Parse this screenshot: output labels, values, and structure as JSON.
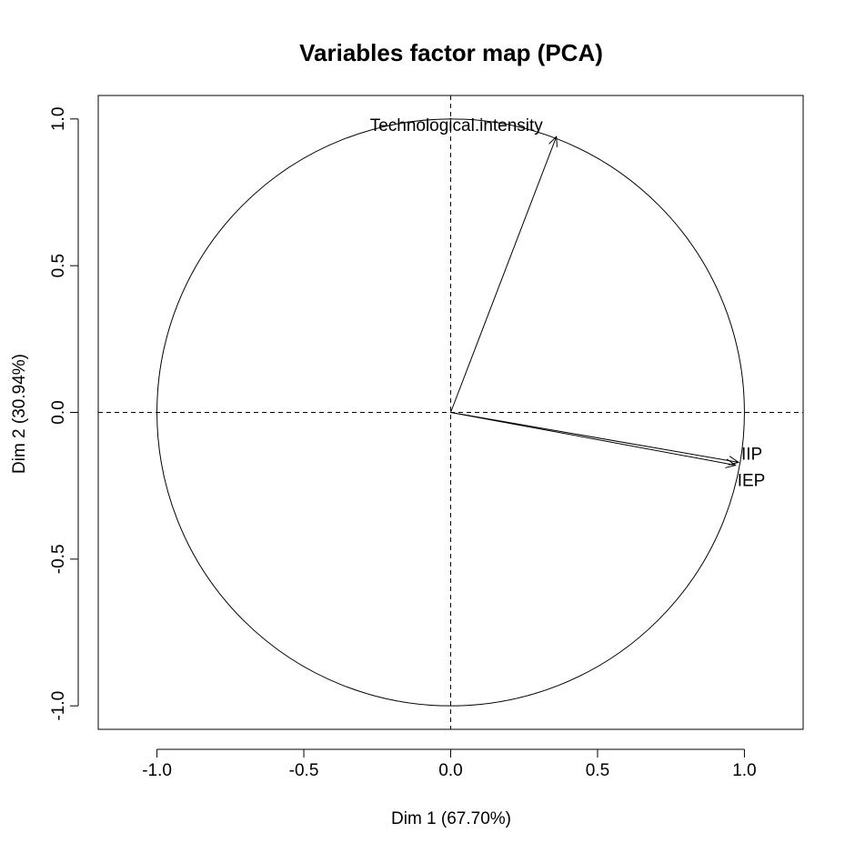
{
  "chart_data": {
    "type": "scatter",
    "title": "Variables factor map (PCA)",
    "xlabel": "Dim 1 (67.70%)",
    "ylabel": "Dim 2 (30.94%)",
    "xlim": [
      -1.2,
      1.2
    ],
    "ylim": [
      -1.08,
      1.08
    ],
    "xticks": [
      -1.0,
      -0.5,
      0.0,
      0.5,
      1.0
    ],
    "yticks": [
      -1.0,
      -0.5,
      0.0,
      0.5,
      1.0
    ],
    "xtick_labels": [
      "-1.0",
      "-0.5",
      "0.0",
      "0.5",
      "1.0"
    ],
    "ytick_labels": [
      "-1.0",
      "-0.5",
      "0.0",
      "0.5",
      "1.0"
    ],
    "correlation_circle_radius": 1.0,
    "reference_lines": {
      "x": 0,
      "y": 0,
      "style": "dashed"
    },
    "grid": false,
    "variables": [
      {
        "name": "Technological.intensity",
        "x": 0.36,
        "y": 0.94
      },
      {
        "name": "IIP",
        "x": 0.98,
        "y": -0.17
      },
      {
        "name": "IEP",
        "x": 0.97,
        "y": -0.18
      }
    ]
  }
}
